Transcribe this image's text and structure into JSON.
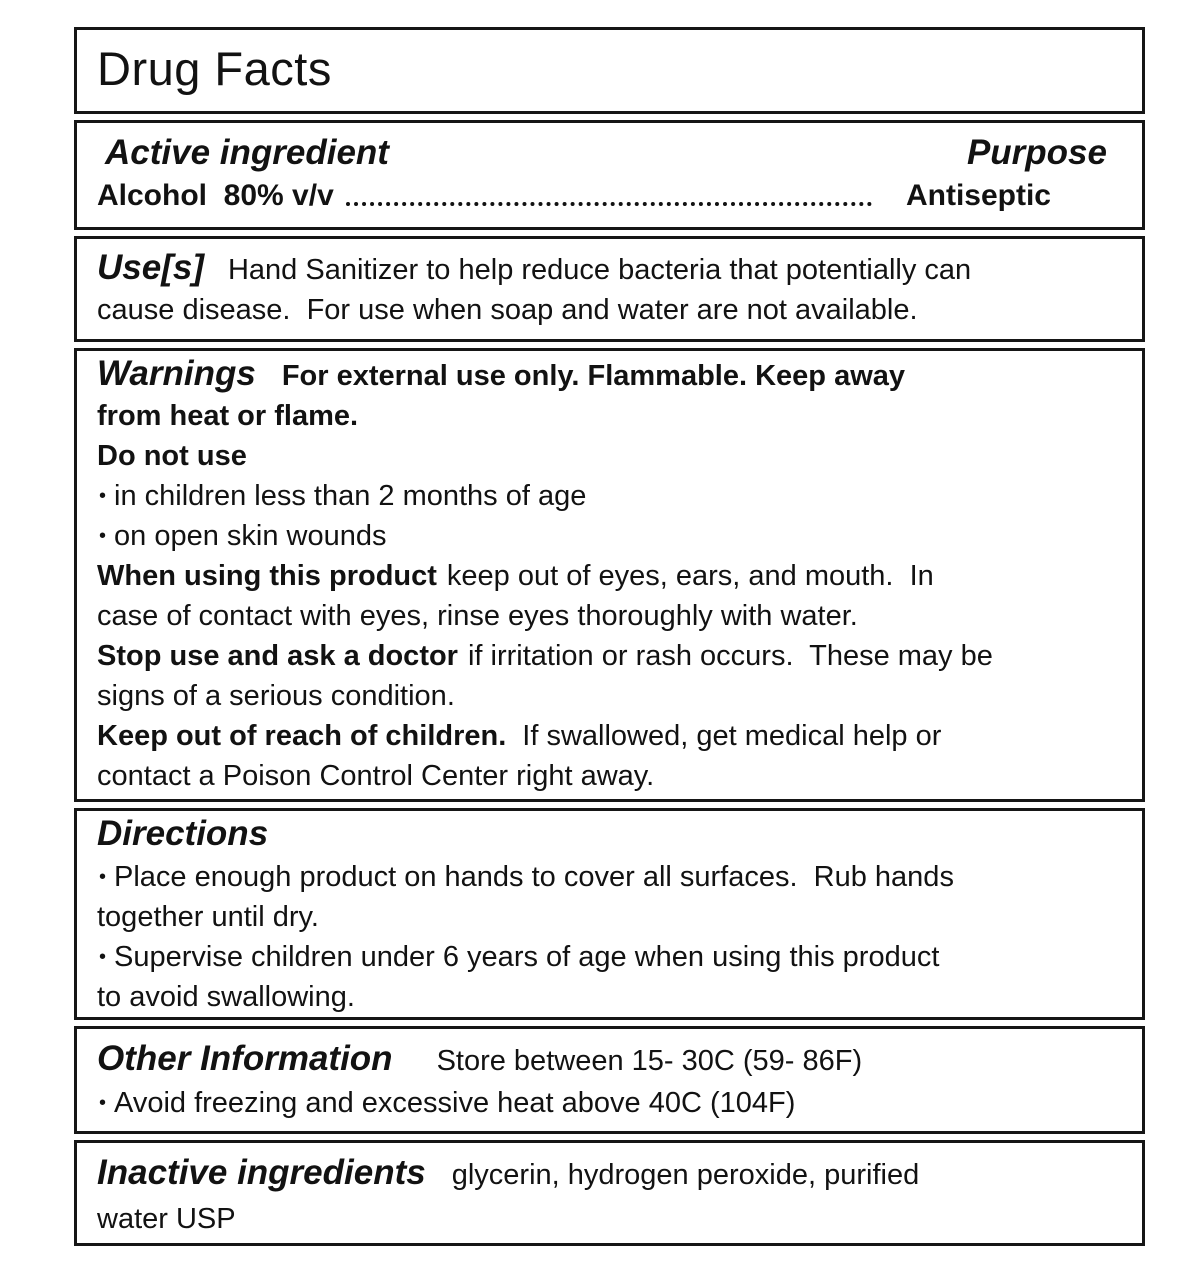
{
  "colors": {
    "text": "#121212",
    "border": "#161616",
    "background": "#ffffff"
  },
  "bullet": "•",
  "title": "Drug Facts",
  "active": {
    "heading": "Active ingredient",
    "purpose_heading": "Purpose",
    "name": "Alcohol  80% v/v",
    "purpose": "Antiseptic"
  },
  "uses": {
    "heading": "Use[s]",
    "text": "Hand Sanitizer to help reduce bacteria that potentially can\ncause disease.  For use when soap and water are not available."
  },
  "warnings": {
    "heading": "Warnings",
    "intro": "For external use only. Flammable. Keep away\nfrom heat or flame.",
    "do_not_use_heading": "Do not use",
    "do_not_use_bullets": [
      "in children less than 2 months of age",
      "on open skin wounds"
    ],
    "when_using_heading": "When using this product",
    "when_using_text": "keep out of eyes, ears, and mouth.  In\ncase of contact with eyes, rinse eyes thoroughly with water.",
    "stop_use_heading": "Stop use and ask a doctor",
    "stop_use_text": "if irritation or rash occurs.  These may be\nsigns of a serious condition.",
    "keep_out_heading": "Keep out of reach of children.",
    "keep_out_text": "If swallowed, get medical help or\ncontact a Poison Control Center right away."
  },
  "directions": {
    "heading": "Directions",
    "bullets": [
      "Place enough product on hands to cover all surfaces.  Rub hands\ntogether until dry.",
      "Supervise children under 6 years of age when using this product\nto avoid swallowing."
    ]
  },
  "other_info": {
    "heading": "Other Information",
    "storage": "Store between 15- 30C (59- 86F)",
    "bullets": [
      "Avoid freezing and excessive heat above 40C (104F)"
    ]
  },
  "inactive": {
    "heading": "Inactive ingredients",
    "text": "glycerin, hydrogen peroxide, purified\nwater USP"
  }
}
